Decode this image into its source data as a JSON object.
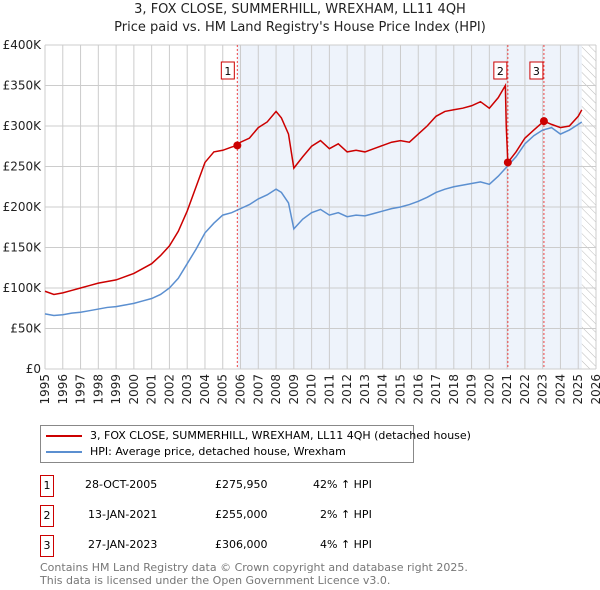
{
  "title": "3, FOX CLOSE, SUMMERHILL, WREXHAM, LL11 4QH",
  "subtitle": "Price paid vs. HM Land Registry's House Price Index (HPI)",
  "colors": {
    "property": "#cc0000",
    "hpi": "#5b8fd0",
    "shade": "#eef3fb"
  },
  "chart_data": {
    "type": "line",
    "xlim": [
      1995,
      2026
    ],
    "ylim": [
      0,
      400000
    ],
    "x_ticks": [
      "1995",
      "1996",
      "1997",
      "1998",
      "1999",
      "2000",
      "2001",
      "2002",
      "2003",
      "2004",
      "2005",
      "2006",
      "2007",
      "2008",
      "2009",
      "2010",
      "2011",
      "2012",
      "2013",
      "2014",
      "2015",
      "2016",
      "2017",
      "2018",
      "2019",
      "2020",
      "2021",
      "2022",
      "2023",
      "2024",
      "2025",
      "2026"
    ],
    "y_ticks": [
      {
        "v": 0,
        "label": "£0"
      },
      {
        "v": 50000,
        "label": "£50K"
      },
      {
        "v": 100000,
        "label": "£100K"
      },
      {
        "v": 150000,
        "label": "£150K"
      },
      {
        "v": 200000,
        "label": "£200K"
      },
      {
        "v": 250000,
        "label": "£250K"
      },
      {
        "v": 300000,
        "label": "£300K"
      },
      {
        "v": 350000,
        "label": "£350K"
      },
      {
        "v": 400000,
        "label": "£400K"
      }
    ],
    "series": [
      {
        "name": "3, FOX CLOSE, SUMMERHILL, WREXHAM, LL11 4QH (detached house)",
        "color": "#cc0000",
        "x": [
          1995,
          1995.5,
          1996,
          1996.5,
          1997,
          1997.5,
          1998,
          1998.5,
          1999,
          1999.5,
          2000,
          2000.5,
          2001,
          2001.5,
          2002,
          2002.5,
          2003,
          2003.5,
          2004,
          2004.5,
          2005,
          2005.5,
          2005.82,
          2006,
          2006.5,
          2007,
          2007.5,
          2008,
          2008.3,
          2008.7,
          2009,
          2009.5,
          2010,
          2010.5,
          2011,
          2011.5,
          2012,
          2012.5,
          2013,
          2013.5,
          2014,
          2014.5,
          2015,
          2015.5,
          2016,
          2016.5,
          2017,
          2017.5,
          2018,
          2018.5,
          2019,
          2019.5,
          2020,
          2020.5,
          2020.9,
          2020.95,
          2021.04,
          2021.5,
          2022,
          2022.5,
          2023.07,
          2023.5,
          2024,
          2024.5,
          2025,
          2025.2
        ],
        "y": [
          96000,
          92000,
          94000,
          97000,
          100000,
          103000,
          106000,
          108000,
          110000,
          114000,
          118000,
          124000,
          130000,
          140000,
          152000,
          170000,
          195000,
          225000,
          255000,
          268000,
          270000,
          274000,
          275950,
          280000,
          285000,
          298000,
          305000,
          318000,
          310000,
          290000,
          248000,
          262000,
          275000,
          282000,
          272000,
          278000,
          268000,
          270000,
          268000,
          272000,
          276000,
          280000,
          282000,
          280000,
          290000,
          300000,
          312000,
          318000,
          320000,
          322000,
          325000,
          330000,
          322000,
          335000,
          350000,
          300000,
          255000,
          268000,
          285000,
          295000,
          306000,
          302000,
          298000,
          300000,
          312000,
          320000
        ]
      },
      {
        "name": "HPI: Average price, detached house, Wrexham",
        "color": "#5b8fd0",
        "x": [
          1995,
          1995.5,
          1996,
          1996.5,
          1997,
          1997.5,
          1998,
          1998.5,
          1999,
          1999.5,
          2000,
          2000.5,
          2001,
          2001.5,
          2002,
          2002.5,
          2003,
          2003.5,
          2004,
          2004.5,
          2005,
          2005.5,
          2006,
          2006.5,
          2007,
          2007.5,
          2008,
          2008.3,
          2008.7,
          2009,
          2009.5,
          2010,
          2010.5,
          2011,
          2011.5,
          2012,
          2012.5,
          2013,
          2013.5,
          2014,
          2014.5,
          2015,
          2015.5,
          2016,
          2016.5,
          2017,
          2017.5,
          2018,
          2018.5,
          2019,
          2019.5,
          2020,
          2020.5,
          2021,
          2021.5,
          2022,
          2022.5,
          2023,
          2023.5,
          2024,
          2024.5,
          2025,
          2025.2
        ],
        "y": [
          68000,
          66000,
          67000,
          69000,
          70000,
          72000,
          74000,
          76000,
          77000,
          79000,
          81000,
          84000,
          87000,
          92000,
          100000,
          112000,
          130000,
          148000,
          168000,
          180000,
          190000,
          193000,
          198000,
          203000,
          210000,
          215000,
          222000,
          218000,
          205000,
          173000,
          185000,
          193000,
          197000,
          190000,
          193000,
          188000,
          190000,
          189000,
          192000,
          195000,
          198000,
          200000,
          203000,
          207000,
          212000,
          218000,
          222000,
          225000,
          227000,
          229000,
          231000,
          228000,
          238000,
          250000,
          262000,
          278000,
          288000,
          295000,
          298000,
          290000,
          295000,
          302000,
          305000
        ]
      }
    ],
    "sales": [
      {
        "label": "1",
        "date": "28-OCT-2005",
        "price": "£275,950",
        "hpi": "42% ↑ HPI",
        "x": 2005.82,
        "y": 275950
      },
      {
        "label": "2",
        "date": "13-JAN-2021",
        "price": "£255,000",
        "hpi": "2% ↑ HPI",
        "x": 2021.04,
        "y": 255000
      },
      {
        "label": "3",
        "date": "27-JAN-2023",
        "price": "£306,000",
        "hpi": "4% ↑ HPI",
        "x": 2023.07,
        "y": 306000
      }
    ]
  },
  "legend": [
    "3, FOX CLOSE, SUMMERHILL, WREXHAM, LL11 4QH (detached house)",
    "HPI: Average price, detached house, Wrexham"
  ],
  "footer": [
    "Contains HM Land Registry data © Crown copyright and database right 2025.",
    "This data is licensed under the Open Government Licence v3.0."
  ]
}
